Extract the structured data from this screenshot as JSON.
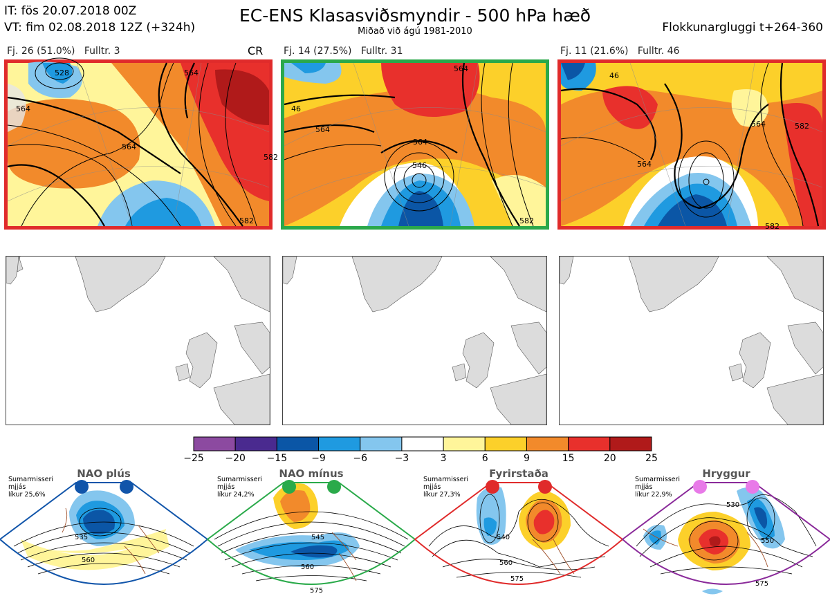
{
  "header": {
    "init_line": "IT: fös 20.07.2018 00Z",
    "valid_line": "VT: fim 02.08.2018 12Z  (+324h)",
    "title": "EC-ENS Klasasviðsmyndir - 500 hPa hæð",
    "subtitle": "Miðað við ágú 1981-2010",
    "window": "Flokkunargluggi t+264-360"
  },
  "clusters": [
    {
      "label": "Fj. 26 (51.0%)",
      "rep": "Fulltr. 3",
      "tag": "CR",
      "frame_color": "#e02b2b",
      "contour_labels": [
        "528",
        "564",
        "564",
        "564",
        "582",
        "582"
      ]
    },
    {
      "label": "Fj. 14 (27.5%)",
      "rep": "Fulltr. 31",
      "tag": "",
      "frame_color": "#2aa84a",
      "contour_labels": [
        "46",
        "564",
        "564",
        "546",
        "564",
        "582"
      ]
    },
    {
      "label": "Fj. 11 (21.6%)",
      "rep": "Fulltr. 46",
      "tag": "",
      "frame_color": "#e02b2b",
      "contour_labels": [
        "46",
        "564",
        "564",
        "582",
        "582"
      ]
    }
  ],
  "colorbar": {
    "ticks": [
      "−25",
      "−20",
      "−15",
      "−9",
      "−6",
      "−3",
      "3",
      "6",
      "9",
      "15",
      "20",
      "25"
    ],
    "colors": [
      "#8c4aa0",
      "#4a2a8f",
      "#0b56a6",
      "#1f9ae0",
      "#84c6ee",
      "#ffffff",
      "#fff59a",
      "#fcd02a",
      "#f28a2b",
      "#e8302c",
      "#b01a1a"
    ]
  },
  "regimes": [
    {
      "name": "NAO plús",
      "season": "Sumarmisseri",
      "period": "mjjás",
      "prob": "líkur 25,6%",
      "color": "#1155aa",
      "contours": [
        "535",
        "560"
      ]
    },
    {
      "name": "NAO mínus",
      "season": "Sumarmisseri",
      "period": "mjjás",
      "prob": "líkur 24,2%",
      "color": "#2aaa4a",
      "contours": [
        "545",
        "560",
        "575"
      ]
    },
    {
      "name": "Fyrirstaða",
      "season": "Sumarmisseri",
      "period": "mjjás",
      "prob": "líkur 27,3%",
      "color": "#e02b2b",
      "contours": [
        "540",
        "560",
        "575"
      ]
    },
    {
      "name": "Hryggur",
      "season": "Sumarmisseri",
      "period": "mjjás",
      "prob": "líkur 22,9%",
      "color": "#8a2a9a",
      "contours": [
        "530",
        "550",
        "575"
      ]
    }
  ]
}
